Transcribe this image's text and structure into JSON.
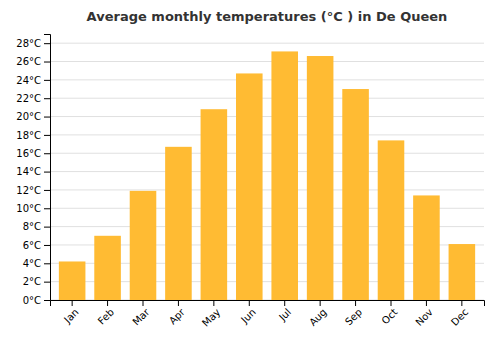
{
  "chart_data": {
    "type": "bar",
    "title": "Average monthly temperatures (°C ) in De Queen",
    "categories": [
      "Jan",
      "Feb",
      "Mar",
      "Apr",
      "May",
      "Jun",
      "Jul",
      "Aug",
      "Sep",
      "Oct",
      "Nov",
      "Dec"
    ],
    "values": [
      4.2,
      7.0,
      11.9,
      16.7,
      20.8,
      24.7,
      27.1,
      26.6,
      23.0,
      17.4,
      11.4,
      6.1
    ],
    "color": "#FFBB33",
    "ylim": [
      0,
      29
    ],
    "yticks": [
      {
        "value": 0,
        "label": "0°C"
      },
      {
        "value": 2,
        "label": "2°C"
      },
      {
        "value": 4,
        "label": "4°C"
      },
      {
        "value": 6,
        "label": "6°C"
      },
      {
        "value": 8,
        "label": "8°C"
      },
      {
        "value": 10,
        "label": "10°C"
      },
      {
        "value": 12,
        "label": "12°C"
      },
      {
        "value": 14,
        "label": "14°C"
      },
      {
        "value": 16,
        "label": "16°C"
      },
      {
        "value": 18,
        "label": "18°C"
      },
      {
        "value": 20,
        "label": "20°C"
      },
      {
        "value": 22,
        "label": "22°C"
      },
      {
        "value": 24,
        "label": "24°C"
      },
      {
        "value": 26,
        "label": "26°C"
      },
      {
        "value": 28,
        "label": "28°C"
      }
    ],
    "grid": true
  }
}
